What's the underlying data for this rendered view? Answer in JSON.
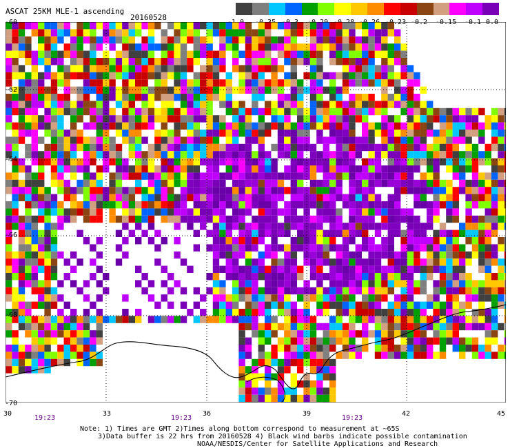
{
  "header": {
    "title": "ASCAT 25KM MLE-1 ascending",
    "date": "20160528"
  },
  "colorbar": {
    "labels": [
      "-1.0",
      "-0.35",
      "-0.3",
      "-0.29",
      "-0.28",
      "-0.26",
      "-0.23",
      "-0.2",
      "-0.15",
      "-0.1",
      "0.0"
    ],
    "colors": [
      "#404040",
      "#7f7f7f",
      "#00c8ff",
      "#0064ff",
      "#00a000",
      "#80ff00",
      "#ffff00",
      "#ffc800",
      "#ff8c00",
      "#ff0000",
      "#c80000",
      "#8b4513",
      "#d2a080",
      "#ff00ff",
      "#c000ff",
      "#7a00b8"
    ]
  },
  "axes": {
    "lat_labels": [
      "-60",
      "-62",
      "-64",
      "-66",
      "-68",
      "-70"
    ],
    "lon_labels": [
      "30",
      "33",
      "36",
      "39",
      "42",
      "45"
    ],
    "lat_range": [
      -70,
      -60
    ],
    "lon_range": [
      30,
      45
    ]
  },
  "times": [
    "19:23",
    "19:23",
    "19:23"
  ],
  "notes": [
    "Note: 1) Times are GMT 2)Times along bottom correspond to measurement at ~65S",
    "3)Data buffer is 22 hrs from 20160528 4) Black wind barbs indicate possible contamination",
    "NOAA/NESDIS/Center for Satellite Applications and Research"
  ]
}
